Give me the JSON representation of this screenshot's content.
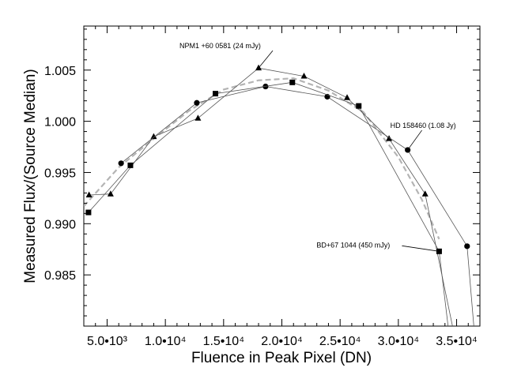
{
  "chart_data": {
    "type": "line",
    "xlabel": "Fluence in Peak Pixel (DN)",
    "ylabel": "Measured Flux/(Source Median)",
    "xlim": [
      3000,
      37000
    ],
    "ylim": [
      0.98,
      1.0093
    ],
    "grid": false,
    "x_ticks": [
      5000,
      10000,
      15000,
      20000,
      25000,
      30000,
      35000
    ],
    "x_tick_labels": [
      "5.0•10³",
      "1.0•10⁴",
      "1.5•10⁴",
      "2.0•10⁴",
      "2.5•10⁴",
      "3.0•10⁴",
      "3.5•10⁴"
    ],
    "y_ticks": [
      0.985,
      0.99,
      0.995,
      1.0,
      1.005
    ],
    "y_tick_labels": [
      "0.985",
      "0.990",
      "0.995",
      "1.000",
      "1.005"
    ],
    "series": [
      {
        "name": "NPM1 +60 0581 (24 mJy)",
        "marker": "triangle",
        "x": [
          3450,
          5300,
          9000,
          12800,
          18000,
          21900,
          25600,
          29200,
          32300,
          34700
        ],
        "y": [
          0.9928,
          0.9929,
          0.9985,
          1.0003,
          1.0052,
          1.0044,
          1.0023,
          0.9983,
          0.9929,
          0.9797
        ]
      },
      {
        "name": "HD 158460 (1.08 Jy)",
        "marker": "circle",
        "x": [
          6200,
          12700,
          18600,
          23900,
          30800,
          35900,
          36500
        ],
        "y": [
          0.9959,
          1.0018,
          1.0034,
          1.0024,
          0.9972,
          0.9878,
          0.9797
        ]
      },
      {
        "name": "BD+67 1044 (450 mJy)",
        "marker": "square",
        "x": [
          3400,
          7000,
          14300,
          20900,
          26600,
          33500,
          34300
        ],
        "y": [
          0.9911,
          0.9957,
          1.0027,
          1.0038,
          1.0015,
          0.9873,
          0.9797
        ]
      }
    ],
    "fit": {
      "style": "dashed",
      "color": "#b4b4b4",
      "x": [
        3000,
        6000,
        9000,
        12000,
        15000,
        18000,
        21000,
        24000,
        27000,
        30000,
        32000,
        33500
      ],
      "y": [
        0.9917,
        0.9955,
        0.9983,
        1.001,
        1.0031,
        1.004,
        1.0042,
        1.003,
        1.0009,
        0.9965,
        0.9924,
        0.9885
      ]
    },
    "annotations": [
      {
        "text": "NPM1 +60 0581 (24 mJy)",
        "series": 0,
        "point": 4
      },
      {
        "text": "HD 158460 (1.08 Jy)",
        "series": 1,
        "point": 4
      },
      {
        "text": "BD+67 1044 (450 mJy)",
        "series": 2,
        "point": 5
      }
    ]
  }
}
